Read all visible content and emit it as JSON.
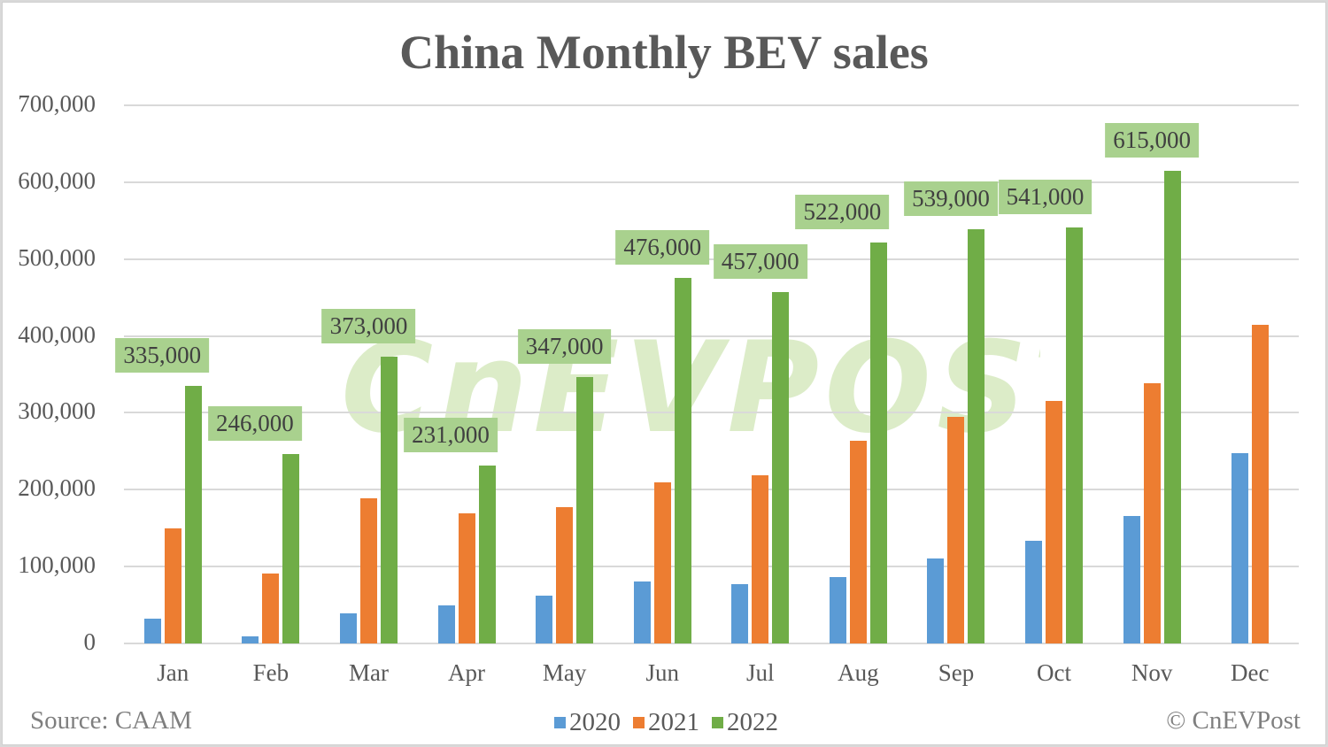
{
  "chart_data": {
    "type": "bar",
    "title": "China Monthly BEV sales",
    "xlabel": "",
    "ylabel": "",
    "ylim": [
      0,
      700000
    ],
    "yticks": [
      "0",
      "100,000",
      "200,000",
      "300,000",
      "400,000",
      "500,000",
      "600,000",
      "700,000"
    ],
    "grid": true,
    "legend_position": "bottom",
    "categories": [
      "Jan",
      "Feb",
      "Mar",
      "Apr",
      "May",
      "Jun",
      "Jul",
      "Aug",
      "Sep",
      "Oct",
      "Nov",
      "Dec"
    ],
    "series": [
      {
        "name": "2020",
        "color": "#5b9bd5",
        "values": [
          32000,
          9000,
          39000,
          50000,
          62000,
          81000,
          77000,
          86000,
          111000,
          133000,
          166000,
          247000
        ]
      },
      {
        "name": "2021",
        "color": "#ed7d31",
        "values": [
          150000,
          91000,
          189000,
          169000,
          177000,
          210000,
          219000,
          264000,
          295000,
          315000,
          338000,
          415000
        ]
      },
      {
        "name": "2022",
        "color": "#70ad47",
        "values": [
          335000,
          246000,
          373000,
          231000,
          347000,
          476000,
          457000,
          522000,
          539000,
          541000,
          615000,
          null
        ]
      }
    ],
    "data_labels_2022": [
      "335,000",
      "246,000",
      "373,000",
      "231,000",
      "347,000",
      "476,000",
      "457,000",
      "522,000",
      "539,000",
      "541,000",
      "615,000"
    ],
    "annotations": [
      "Source: CAAM",
      "© CnEVPost"
    ]
  },
  "footer": {
    "source": "Source: CAAM",
    "copyright": "© CnEVPost"
  },
  "watermark": "CnEVPOST"
}
